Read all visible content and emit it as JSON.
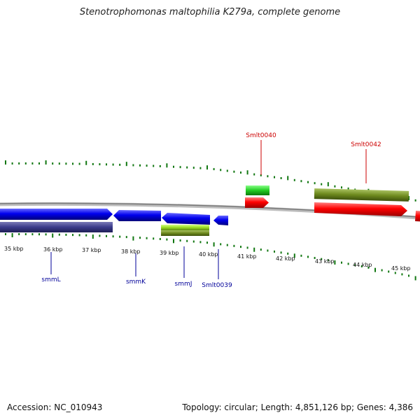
{
  "title": "Stenotrophomonas maltophilia K279a, complete genome",
  "footer": {
    "accession": "Accession: NC_010943",
    "topology": "Topology: circular; Length: 4,851,126 bp; Genes: 4,386"
  },
  "colors": {
    "forward_gene": "#ff0000",
    "forward_feature": "#22cc22",
    "reverse_gene": "#0000ee",
    "reverse_feature": "#3a3a8a",
    "olive_feature": "#6e8a1e",
    "lime_feature": "#99dd22",
    "tick_green": "#117711",
    "backbone": "#888888",
    "label_red": "#cc0000",
    "label_blue": "#000099"
  },
  "scale_labels": [
    "35 kbp",
    "36 kbp",
    "37 kbp",
    "38 kbp",
    "39 kbp",
    "40 kbp",
    "41 kbp",
    "42 kbp",
    "43 kbp",
    "44 kbp",
    "45 kbp"
  ],
  "gene_labels": [
    {
      "text": "Smlt0040",
      "strand": "forward"
    },
    {
      "text": "Smlt0042",
      "strand": "forward"
    },
    {
      "text": "smmL",
      "strand": "reverse"
    },
    {
      "text": "smmK",
      "strand": "reverse"
    },
    {
      "text": "smmJ",
      "strand": "reverse"
    },
    {
      "text": "Smlt0039",
      "strand": "reverse"
    }
  ]
}
